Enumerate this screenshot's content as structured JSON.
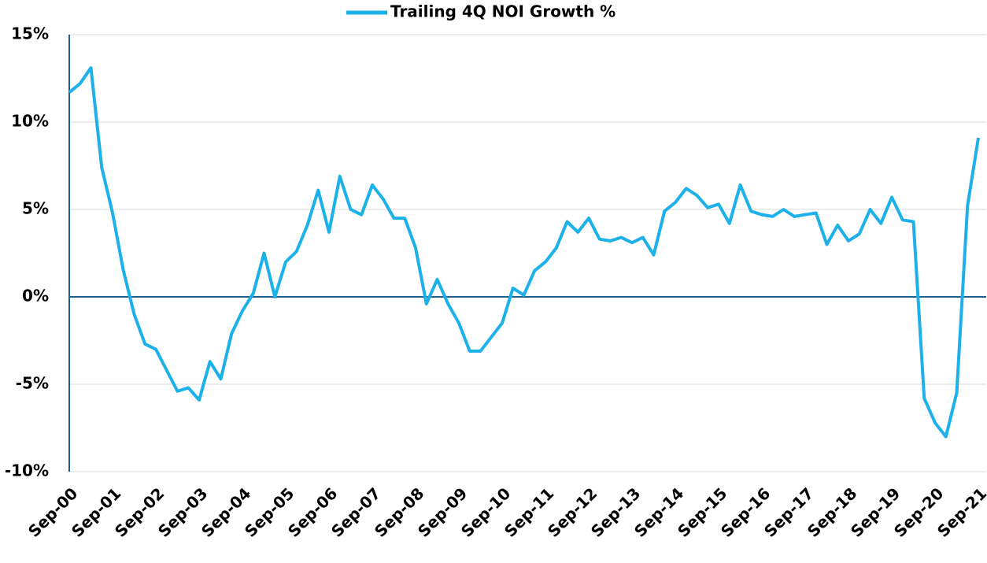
{
  "chart_data": {
    "type": "line",
    "categories": [
      "Sep-00",
      null,
      null,
      null,
      "Sep-01",
      null,
      null,
      null,
      "Sep-02",
      null,
      null,
      null,
      "Sep-03",
      null,
      null,
      null,
      "Sep-04",
      null,
      null,
      null,
      "Sep-05",
      null,
      null,
      null,
      "Sep-06",
      null,
      null,
      null,
      "Sep-07",
      null,
      null,
      null,
      "Sep-08",
      null,
      null,
      null,
      "Sep-09",
      null,
      null,
      null,
      "Sep-10",
      null,
      null,
      null,
      "Sep-11",
      null,
      null,
      null,
      "Sep-12",
      null,
      null,
      null,
      "Sep-13",
      null,
      null,
      null,
      "Sep-14",
      null,
      null,
      null,
      "Sep-15",
      null,
      null,
      null,
      "Sep-16",
      null,
      null,
      null,
      "Sep-17",
      null,
      null,
      null,
      "Sep-18",
      null,
      null,
      null,
      "Sep-19",
      null,
      null,
      null,
      "Sep-20",
      null,
      null,
      null,
      "Sep-21"
    ],
    "series": [
      {
        "name": "Trailing 4Q NOI Growth %",
        "color": "#1db1ea",
        "values": [
          11.7,
          12.2,
          13.1,
          7.4,
          4.8,
          1.5,
          -1.0,
          -2.7,
          -3.0,
          -4.2,
          -5.4,
          -5.2,
          -5.9,
          -3.7,
          -4.7,
          -2.1,
          -0.8,
          0.2,
          2.5,
          0.0,
          2.0,
          2.6,
          4.1,
          6.1,
          3.7,
          6.9,
          5.0,
          4.7,
          6.4,
          5.6,
          4.5,
          4.5,
          2.8,
          -0.4,
          1.0,
          -0.4,
          -1.5,
          -3.1,
          -3.1,
          -2.3,
          -1.5,
          0.5,
          0.1,
          1.5,
          2.0,
          2.8,
          4.3,
          3.7,
          4.5,
          3.3,
          3.2,
          3.4,
          3.1,
          3.4,
          2.4,
          4.9,
          5.4,
          6.2,
          5.8,
          5.1,
          5.3,
          4.2,
          6.4,
          4.9,
          4.7,
          4.6,
          5.0,
          4.6,
          4.7,
          4.8,
          3.0,
          4.1,
          3.2,
          3.6,
          5.0,
          4.2,
          5.7,
          4.4,
          4.3,
          -5.8,
          -7.2,
          -8.0,
          -5.5,
          5.2,
          9.1
        ]
      }
    ],
    "ylim": [
      -10,
      15
    ],
    "yticks": [
      {
        "value": -10,
        "label": "-10%"
      },
      {
        "value": -5,
        "label": "-5%"
      },
      {
        "value": 0,
        "label": "0%"
      },
      {
        "value": 5,
        "label": "5%"
      },
      {
        "value": 10,
        "label": "10%"
      },
      {
        "value": 15,
        "label": "15%"
      }
    ],
    "grid": true,
    "legend": "top"
  }
}
